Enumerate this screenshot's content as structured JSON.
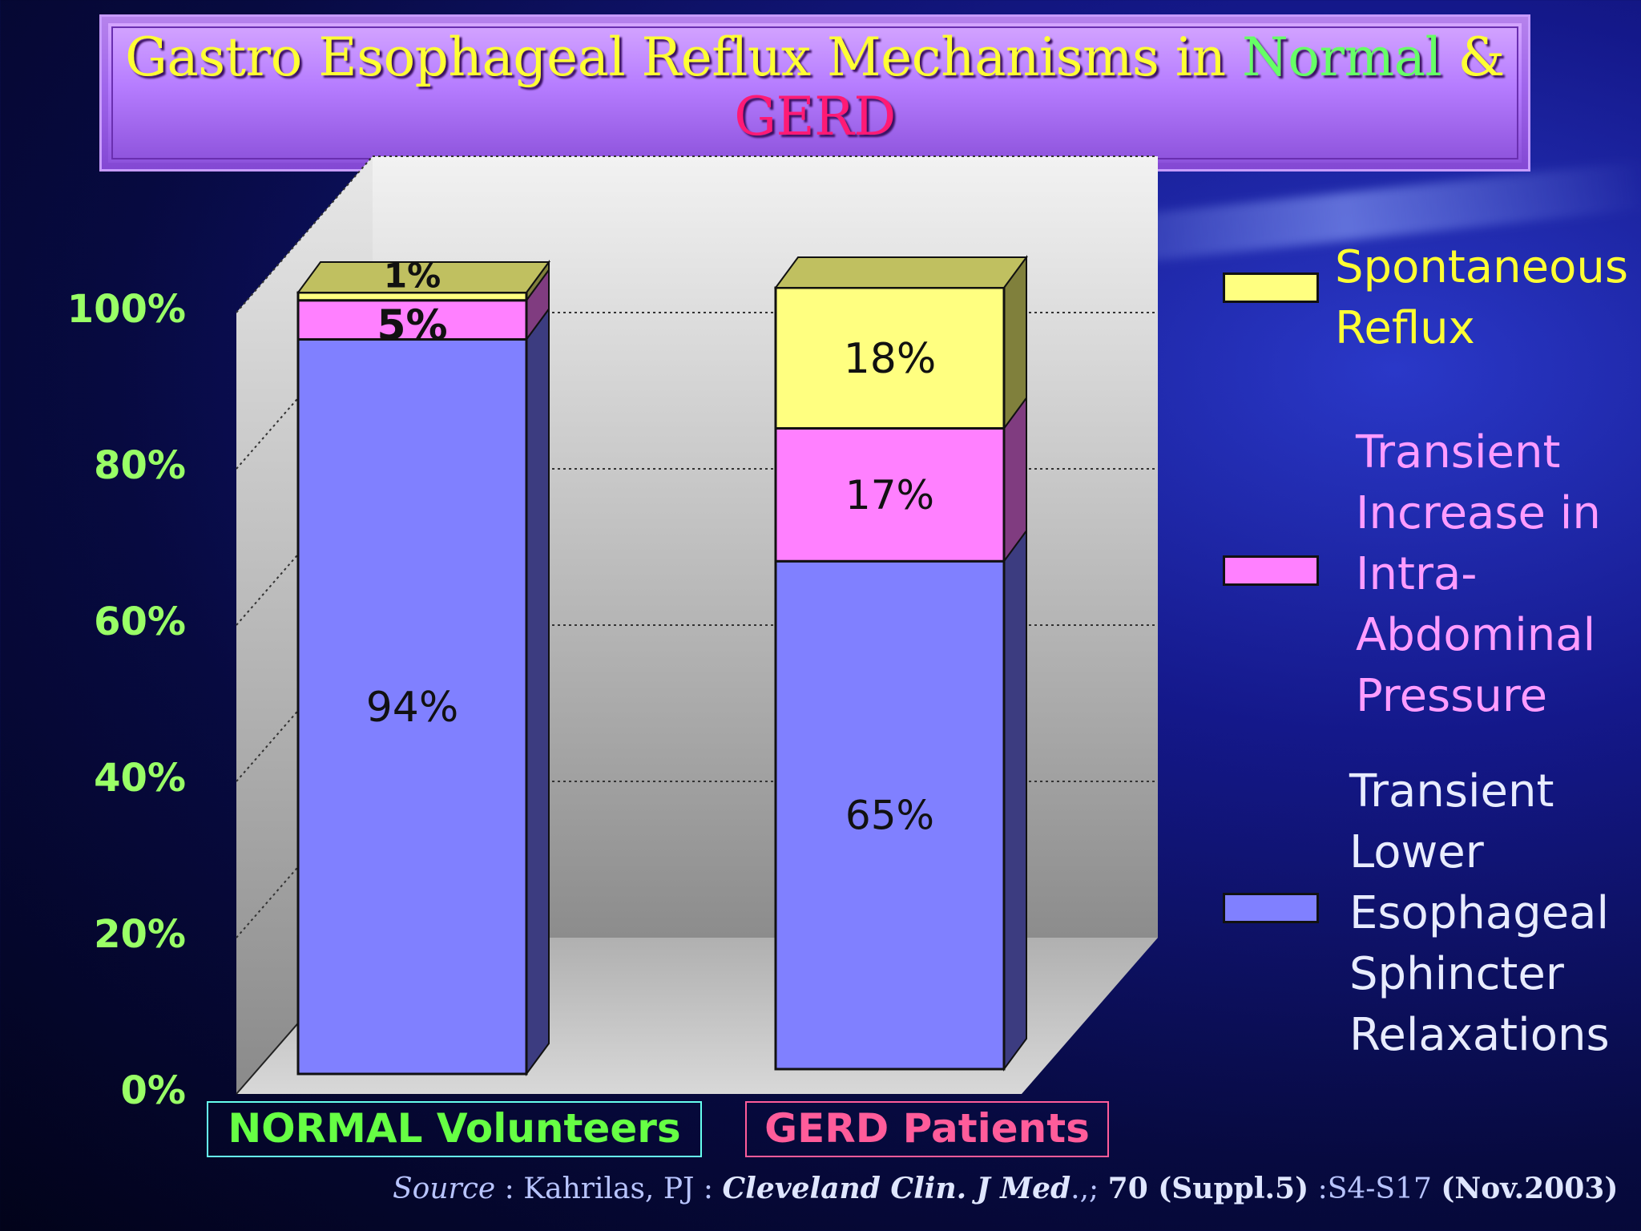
{
  "title": {
    "part1": "Gastro Esophageal Reflux Mechanisms in ",
    "part2": "Normal",
    "part3": " &",
    "part4": "GERD"
  },
  "colors": {
    "spontaneous": "#ffff80",
    "intra_abdominal": "#ff80ff",
    "tlesr": "#8080ff",
    "ytick": "#99ff66",
    "normal_label": "#66ff44",
    "gerd_label": "#ff5c9a"
  },
  "chart_data": {
    "type": "bar",
    "stacked": true,
    "categories": [
      "NORMAL Volunteers",
      "GERD Patients"
    ],
    "series": [
      {
        "name": "Transient Lower Esophageal Sphincter Relaxations",
        "values": [
          94,
          65
        ],
        "labels": [
          "94%",
          "65%"
        ]
      },
      {
        "name": "Transient Increase in Intra-Abdominal Pressure",
        "values": [
          5,
          17
        ],
        "labels": [
          "5%",
          "17%"
        ]
      },
      {
        "name": "Spontaneous Reflux",
        "values": [
          1,
          18
        ],
        "labels": [
          "1%",
          "18%"
        ]
      }
    ],
    "yticks": [
      "0%",
      "20%",
      "40%",
      "60%",
      "80%",
      "100%"
    ],
    "ylim": [
      0,
      100
    ],
    "grid": true,
    "legend_position": "right"
  },
  "legend": [
    {
      "text": "Spontaneous\nReflux",
      "color": "#ffff33"
    },
    {
      "text": "Transient\nIncrease in\nIntra-\nAbdominal\nPressure",
      "color": "#ff9cff"
    },
    {
      "text": "Transient\nLower\nEsophageal\nSphincter\nRelaxations",
      "color": "#e8ecff"
    }
  ],
  "source": {
    "word": "Source",
    "author": " : Kahrilas, PJ : ",
    "journal": "Cleveland Clin. J Med",
    "sep": ".,; ",
    "volume": "70 (Suppl.5)",
    "pages": " :S4-S17 ",
    "date": "(Nov.2003)"
  }
}
